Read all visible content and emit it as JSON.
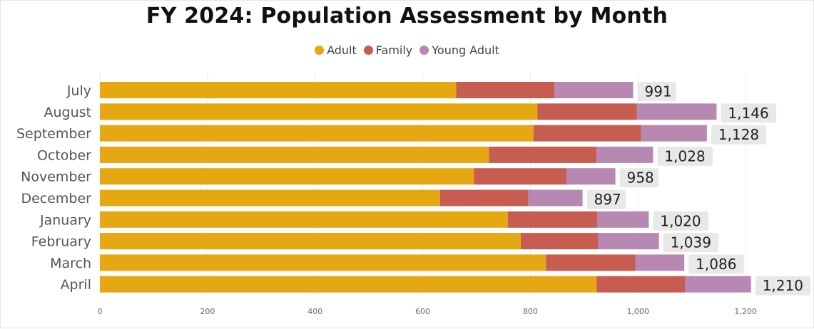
{
  "title": "FY 2024: Population Assessment by Month",
  "legend": [
    {
      "name": "Adult",
      "color": "#E5A812"
    },
    {
      "name": "Family",
      "color": "#C65D50"
    },
    {
      "name": "Young Adult",
      "color": "#B788B2"
    }
  ],
  "chart_data": {
    "type": "bar",
    "orientation": "horizontal",
    "stacked": true,
    "categories": [
      "July",
      "August",
      "September",
      "October",
      "November",
      "December",
      "January",
      "February",
      "March",
      "April"
    ],
    "series": [
      {
        "name": "Adult",
        "color": "#E5A812",
        "values": [
          662,
          813,
          806,
          723,
          695,
          632,
          758,
          782,
          829,
          923
        ]
      },
      {
        "name": "Family",
        "color": "#C65D50",
        "values": [
          183,
          185,
          200,
          200,
          172,
          164,
          166,
          144,
          166,
          165
        ]
      },
      {
        "name": "Young Adult",
        "color": "#B788B2",
        "values": [
          146,
          148,
          122,
          105,
          91,
          101,
          96,
          113,
          91,
          122
        ]
      }
    ],
    "totals": [
      "991",
      "1,146",
      "1,128",
      "1,028",
      "958",
      "897",
      "1,020",
      "1,039",
      "1,086",
      "1,210"
    ],
    "xlim": [
      0,
      1250
    ],
    "xticks": [
      0,
      200,
      400,
      600,
      800,
      1000,
      1200
    ],
    "xtick_labels": [
      "0",
      "200",
      "400",
      "600",
      "800",
      "1,000",
      "1,200"
    ],
    "grid": true,
    "legend_position": "top-center"
  }
}
